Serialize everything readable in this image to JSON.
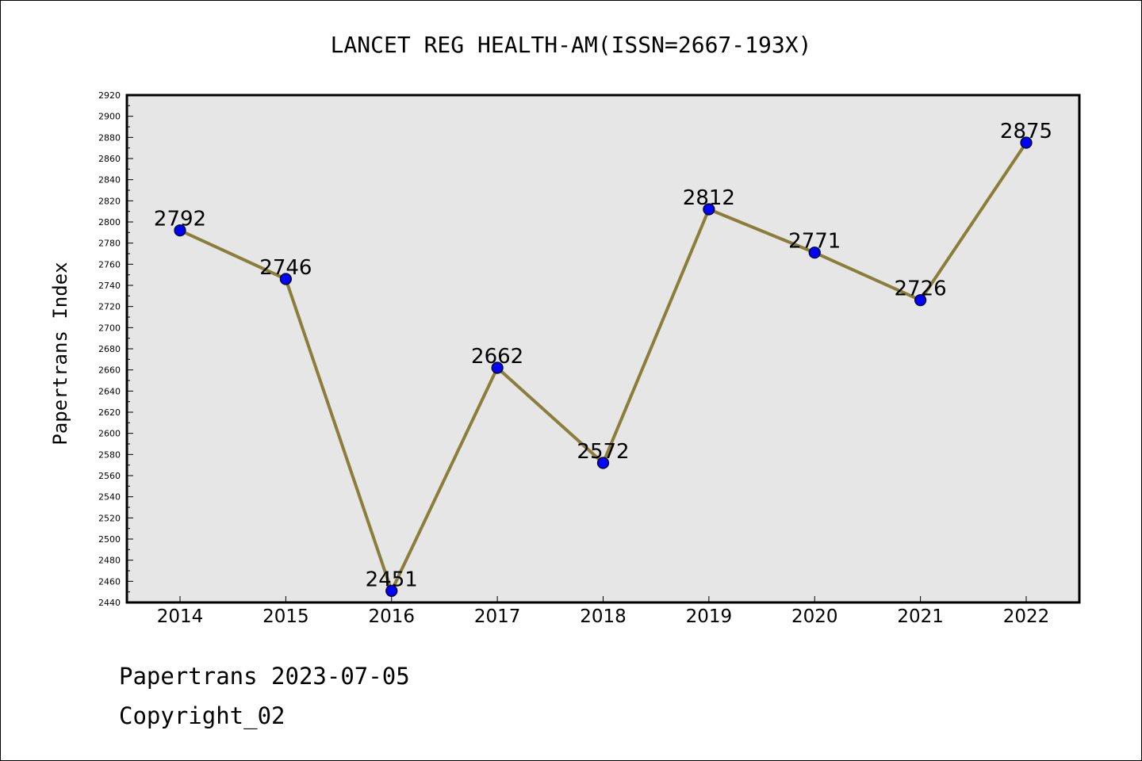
{
  "chart_data": {
    "type": "line",
    "title": "LANCET REG HEALTH-AM(ISSN=2667-193X)",
    "ylabel": "Papertrans Index",
    "xlabel": "",
    "categories": [
      "2014",
      "2015",
      "2016",
      "2017",
      "2018",
      "2019",
      "2020",
      "2021",
      "2022"
    ],
    "values": [
      2792,
      2746,
      2451,
      2662,
      2572,
      2812,
      2771,
      2726,
      2875
    ],
    "data_labels": [
      "2792",
      "2746",
      "2451",
      "2662",
      "2572",
      "2812",
      "2771",
      "2726",
      "2875"
    ],
    "ylim": [
      2440,
      2920
    ],
    "yticks": [
      2440,
      2460,
      2480,
      2500,
      2520,
      2540,
      2560,
      2580,
      2600,
      2620,
      2640,
      2660,
      2680,
      2700,
      2720,
      2740,
      2760,
      2780,
      2800,
      2820,
      2840,
      2860,
      2880,
      2900,
      2920
    ],
    "ytick_labels": [
      "2440",
      "2460",
      "2480",
      "2500",
      "2520",
      "2540",
      "2560",
      "2580",
      "2600",
      "2620",
      "2640",
      "2660",
      "2680",
      "2700",
      "2720",
      "2740",
      "2760",
      "2780",
      "2800",
      "2820",
      "2840",
      "2860",
      "2880",
      "2900",
      "2920"
    ],
    "grid": false,
    "legend": "none",
    "colors": {
      "line": "#8B7D3A",
      "marker": "#0000FF",
      "plot_background": "#E6E6E6"
    }
  },
  "footer": {
    "line1": "Papertrans 2023-07-05",
    "line2": "Copyright_02"
  }
}
